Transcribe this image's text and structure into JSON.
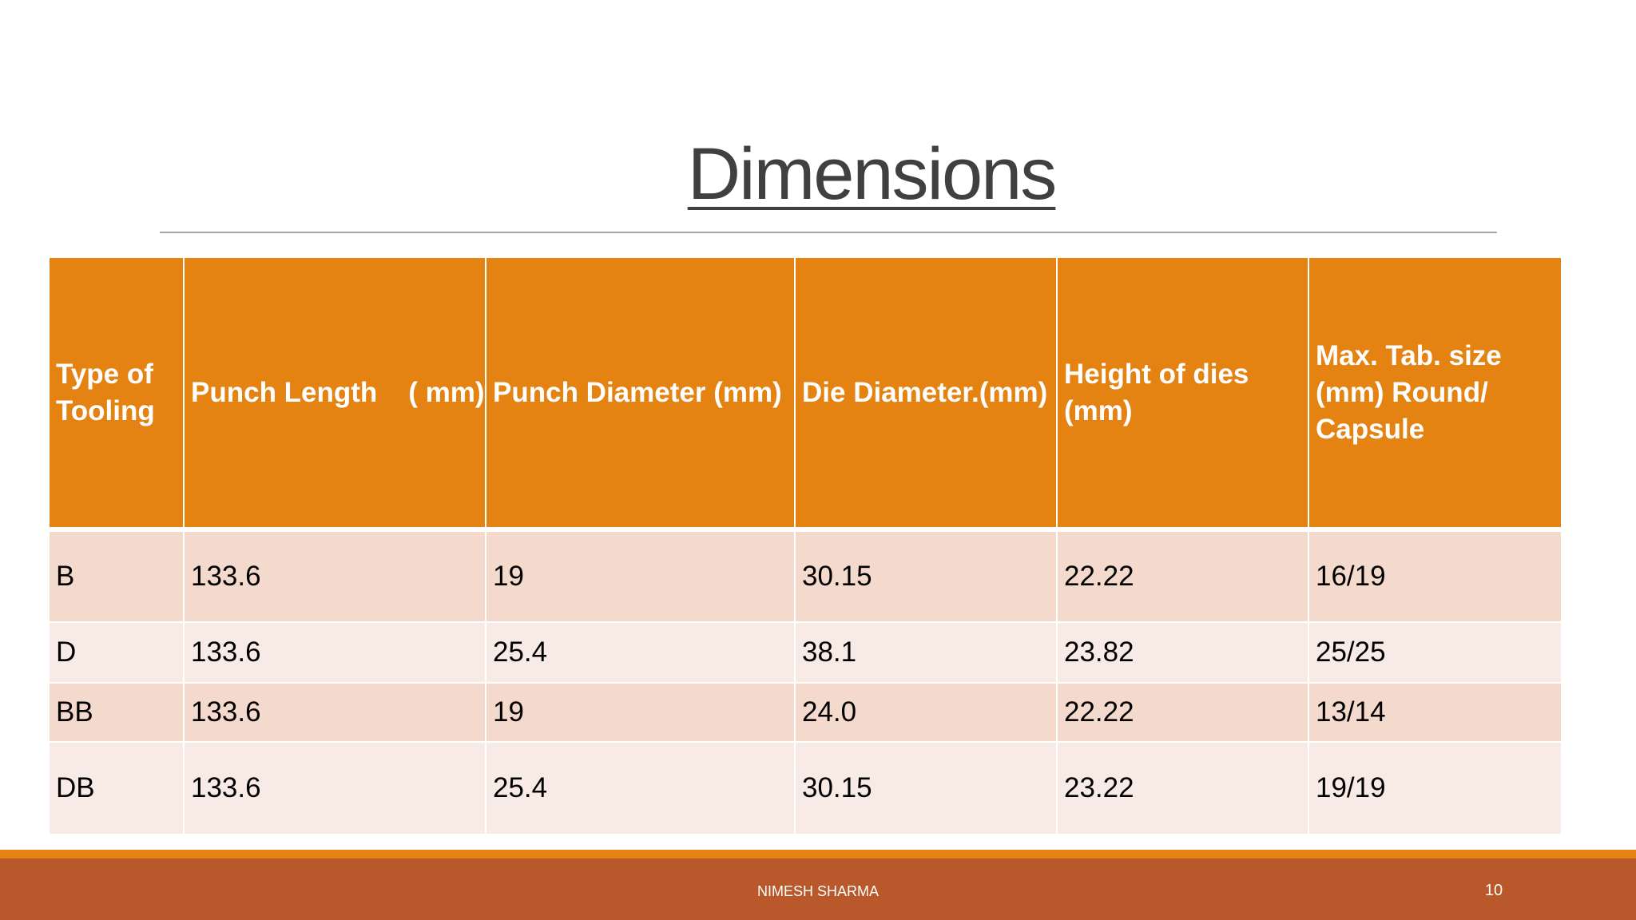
{
  "slide": {
    "title": "Dimensions",
    "footer_author": "NIMESH SHARMA",
    "page_number": "10"
  },
  "table": {
    "headers": [
      "Type of Tooling",
      "Punch Length    ( mm)",
      "Punch Diameter (mm)",
      "Die Diameter.(mm)",
      "Height of dies (mm)",
      "Max. Tab. size (mm)  Round/ Capsule"
    ],
    "rows": [
      [
        "B",
        "133.6",
        "19",
        "30.15",
        "22.22",
        "16/19"
      ],
      [
        "D",
        "133.6",
        "25.4",
        "38.1",
        "23.82",
        "25/25"
      ],
      [
        "BB",
        "133.6",
        "19",
        "24.0",
        "22.22",
        "13/14"
      ],
      [
        "DB",
        "133.6",
        "25.4",
        "30.15",
        "23.22",
        "19/19"
      ]
    ]
  },
  "colors": {
    "header_fill": "#e58312",
    "row_odd": "#f4d9cd",
    "row_even": "#f8ebe6",
    "footer_fill": "#b9582a",
    "title_text": "#404040"
  }
}
